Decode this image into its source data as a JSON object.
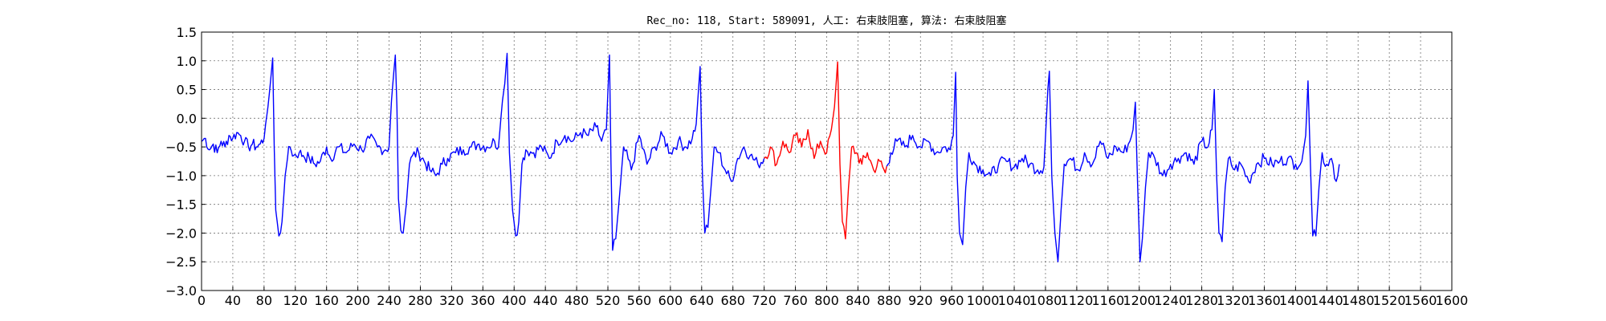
{
  "chart_data": {
    "type": "line",
    "title": "Rec_no: 118, Start: 589091, 人工: 右束肢阻塞, 算法: 右束肢阻塞",
    "xlabel": "",
    "ylabel": "",
    "xlim": [
      0,
      1600
    ],
    "ylim": [
      -3.0,
      1.5
    ],
    "grid": true,
    "x_ticks": [
      0,
      40,
      80,
      120,
      160,
      200,
      240,
      280,
      320,
      360,
      400,
      440,
      480,
      520,
      560,
      600,
      640,
      680,
      720,
      760,
      800,
      840,
      880,
      920,
      960,
      1000,
      1040,
      1080,
      1120,
      1160,
      1200,
      1240,
      1280,
      1320,
      1360,
      1400,
      1440,
      1480,
      1520,
      1560,
      1600
    ],
    "y_ticks": [
      1.5,
      1.0,
      0.5,
      0.0,
      -0.5,
      -1.0,
      -1.5,
      -2.0,
      -2.5,
      -3.0
    ],
    "y_tick_labels": [
      "1.5",
      "1.0",
      "0.5",
      "0.0",
      "−0.5",
      "−1.0",
      "−1.5",
      "−2.0",
      "−2.5",
      "−3.0"
    ],
    "highlight_range": [
      720,
      875
    ],
    "colors": {
      "main": "#0000ff",
      "highlight": "#ff0000"
    },
    "anchors": [
      [
        0,
        -0.4
      ],
      [
        5,
        -0.35
      ],
      [
        10,
        -0.55
      ],
      [
        15,
        -0.45
      ],
      [
        20,
        -0.6
      ],
      [
        25,
        -0.4
      ],
      [
        30,
        -0.5
      ],
      [
        35,
        -0.3
      ],
      [
        40,
        -0.35
      ],
      [
        45,
        -0.25
      ],
      [
        50,
        -0.3
      ],
      [
        55,
        -0.4
      ],
      [
        60,
        -0.5
      ],
      [
        65,
        -0.45
      ],
      [
        70,
        -0.5
      ],
      [
        75,
        -0.45
      ],
      [
        80,
        -0.35
      ],
      [
        82,
        -0.1
      ],
      [
        85,
        0.2
      ],
      [
        88,
        0.6
      ],
      [
        91,
        1.05
      ],
      [
        93,
        -0.5
      ],
      [
        95,
        -1.6
      ],
      [
        99,
        -2.05
      ],
      [
        103,
        -1.8
      ],
      [
        107,
        -1.0
      ],
      [
        110,
        -0.7
      ],
      [
        113,
        -0.5
      ],
      [
        118,
        -0.65
      ],
      [
        125,
        -0.6
      ],
      [
        130,
        -0.65
      ],
      [
        138,
        -0.7
      ],
      [
        145,
        -0.8
      ],
      [
        152,
        -0.75
      ],
      [
        160,
        -0.5
      ],
      [
        165,
        -0.7
      ],
      [
        175,
        -0.5
      ],
      [
        185,
        -0.6
      ],
      [
        195,
        -0.45
      ],
      [
        205,
        -0.55
      ],
      [
        215,
        -0.35
      ],
      [
        225,
        -0.5
      ],
      [
        235,
        -0.55
      ],
      [
        240,
        -0.5
      ],
      [
        243,
        0.3
      ],
      [
        246,
        0.8
      ],
      [
        248,
        1.1
      ],
      [
        250,
        0.2
      ],
      [
        252,
        -1.4
      ],
      [
        255,
        -1.95
      ],
      [
        258,
        -2.0
      ],
      [
        262,
        -1.5
      ],
      [
        266,
        -0.8
      ],
      [
        270,
        -0.65
      ],
      [
        278,
        -0.6
      ],
      [
        285,
        -0.75
      ],
      [
        292,
        -0.9
      ],
      [
        300,
        -1.0
      ],
      [
        308,
        -0.8
      ],
      [
        315,
        -0.7
      ],
      [
        325,
        -0.6
      ],
      [
        335,
        -0.55
      ],
      [
        345,
        -0.5
      ],
      [
        355,
        -0.45
      ],
      [
        365,
        -0.5
      ],
      [
        375,
        -0.4
      ],
      [
        380,
        -0.5
      ],
      [
        385,
        0.3
      ],
      [
        388,
        0.6
      ],
      [
        391,
        1.13
      ],
      [
        394,
        -0.6
      ],
      [
        398,
        -1.6
      ],
      [
        402,
        -2.05
      ],
      [
        406,
        -1.8
      ],
      [
        410,
        -0.8
      ],
      [
        415,
        -0.55
      ],
      [
        425,
        -0.6
      ],
      [
        435,
        -0.5
      ],
      [
        445,
        -0.7
      ],
      [
        455,
        -0.4
      ],
      [
        465,
        -0.3
      ],
      [
        475,
        -0.4
      ],
      [
        485,
        -0.25
      ],
      [
        495,
        -0.3
      ],
      [
        505,
        -0.15
      ],
      [
        512,
        -0.4
      ],
      [
        518,
        -0.2
      ],
      [
        522,
        1.1
      ],
      [
        524,
        -0.8
      ],
      [
        526,
        -2.3
      ],
      [
        530,
        -2.1
      ],
      [
        534,
        -1.5
      ],
      [
        540,
        -0.5
      ],
      [
        550,
        -0.9
      ],
      [
        560,
        -0.3
      ],
      [
        570,
        -0.8
      ],
      [
        580,
        -0.5
      ],
      [
        590,
        -0.3
      ],
      [
        600,
        -0.6
      ],
      [
        610,
        -0.4
      ],
      [
        620,
        -0.5
      ],
      [
        628,
        -0.35
      ],
      [
        633,
        -0.1
      ],
      [
        638,
        0.9
      ],
      [
        641,
        -1.0
      ],
      [
        644,
        -2.0
      ],
      [
        648,
        -1.9
      ],
      [
        652,
        -1.2
      ],
      [
        656,
        -0.5
      ],
      [
        662,
        -0.6
      ],
      [
        670,
        -0.9
      ],
      [
        678,
        -1.1
      ],
      [
        686,
        -0.7
      ],
      [
        694,
        -0.5
      ],
      [
        702,
        -0.65
      ],
      [
        712,
        -0.8
      ],
      [
        720,
        -0.7
      ],
      [
        728,
        -0.5
      ],
      [
        736,
        -0.8
      ],
      [
        744,
        -0.4
      ],
      [
        752,
        -0.6
      ],
      [
        760,
        -0.3
      ],
      [
        768,
        -0.5
      ],
      [
        776,
        -0.2
      ],
      [
        784,
        -0.7
      ],
      [
        792,
        -0.4
      ],
      [
        800,
        -0.6
      ],
      [
        806,
        -0.2
      ],
      [
        810,
        0.2
      ],
      [
        814,
        0.98
      ],
      [
        817,
        -0.8
      ],
      [
        820,
        -1.8
      ],
      [
        824,
        -2.1
      ],
      [
        828,
        -1.2
      ],
      [
        832,
        -0.5
      ],
      [
        838,
        -0.6
      ],
      [
        845,
        -0.8
      ],
      [
        852,
        -0.6
      ],
      [
        860,
        -0.9
      ],
      [
        868,
        -0.75
      ],
      [
        875,
        -0.95
      ],
      [
        882,
        -0.6
      ],
      [
        890,
        -0.4
      ],
      [
        900,
        -0.5
      ],
      [
        910,
        -0.3
      ],
      [
        920,
        -0.5
      ],
      [
        930,
        -0.4
      ],
      [
        940,
        -0.6
      ],
      [
        950,
        -0.5
      ],
      [
        958,
        -0.55
      ],
      [
        962,
        -0.3
      ],
      [
        965,
        0.8
      ],
      [
        967,
        -1.0
      ],
      [
        970,
        -2.0
      ],
      [
        974,
        -2.2
      ],
      [
        978,
        -1.2
      ],
      [
        982,
        -0.6
      ],
      [
        990,
        -0.8
      ],
      [
        1000,
        -0.9
      ],
      [
        1010,
        -1.0
      ],
      [
        1020,
        -0.8
      ],
      [
        1030,
        -0.75
      ],
      [
        1040,
        -0.85
      ],
      [
        1050,
        -0.7
      ],
      [
        1060,
        -0.8
      ],
      [
        1070,
        -0.9
      ],
      [
        1078,
        -0.85
      ],
      [
        1083,
        0.5
      ],
      [
        1085,
        0.82
      ],
      [
        1088,
        -1.0
      ],
      [
        1092,
        -2.0
      ],
      [
        1096,
        -2.5
      ],
      [
        1100,
        -1.6
      ],
      [
        1104,
        -0.8
      ],
      [
        1112,
        -0.7
      ],
      [
        1122,
        -0.9
      ],
      [
        1130,
        -0.6
      ],
      [
        1140,
        -0.8
      ],
      [
        1150,
        -0.4
      ],
      [
        1160,
        -0.7
      ],
      [
        1170,
        -0.5
      ],
      [
        1180,
        -0.6
      ],
      [
        1188,
        -0.4
      ],
      [
        1192,
        -0.2
      ],
      [
        1195,
        0.28
      ],
      [
        1198,
        -1.2
      ],
      [
        1201,
        -2.5
      ],
      [
        1204,
        -2.1
      ],
      [
        1208,
        -1.2
      ],
      [
        1212,
        -0.6
      ],
      [
        1220,
        -0.7
      ],
      [
        1230,
        -1.0
      ],
      [
        1240,
        -0.8
      ],
      [
        1250,
        -0.7
      ],
      [
        1260,
        -0.6
      ],
      [
        1270,
        -0.8
      ],
      [
        1280,
        -0.4
      ],
      [
        1288,
        -0.5
      ],
      [
        1293,
        -0.2
      ],
      [
        1296,
        0.5
      ],
      [
        1299,
        -1.0
      ],
      [
        1302,
        -2.0
      ],
      [
        1306,
        -2.15
      ],
      [
        1310,
        -1.2
      ],
      [
        1314,
        -0.7
      ],
      [
        1322,
        -0.9
      ],
      [
        1330,
        -0.8
      ],
      [
        1340,
        -1.1
      ],
      [
        1350,
        -0.8
      ],
      [
        1360,
        -0.7
      ],
      [
        1370,
        -0.8
      ],
      [
        1380,
        -0.75
      ],
      [
        1390,
        -0.7
      ],
      [
        1400,
        -0.8
      ],
      [
        1408,
        -0.75
      ],
      [
        1413,
        -0.3
      ],
      [
        1416,
        0.65
      ],
      [
        1419,
        -0.8
      ],
      [
        1422,
        -2.05
      ],
      [
        1426,
        -2.05
      ],
      [
        1430,
        -1.2
      ],
      [
        1434,
        -0.6
      ],
      [
        1440,
        -0.8
      ],
      [
        1446,
        -0.7
      ],
      [
        1452,
        -1.1
      ],
      [
        1456,
        -0.8
      ]
    ]
  }
}
